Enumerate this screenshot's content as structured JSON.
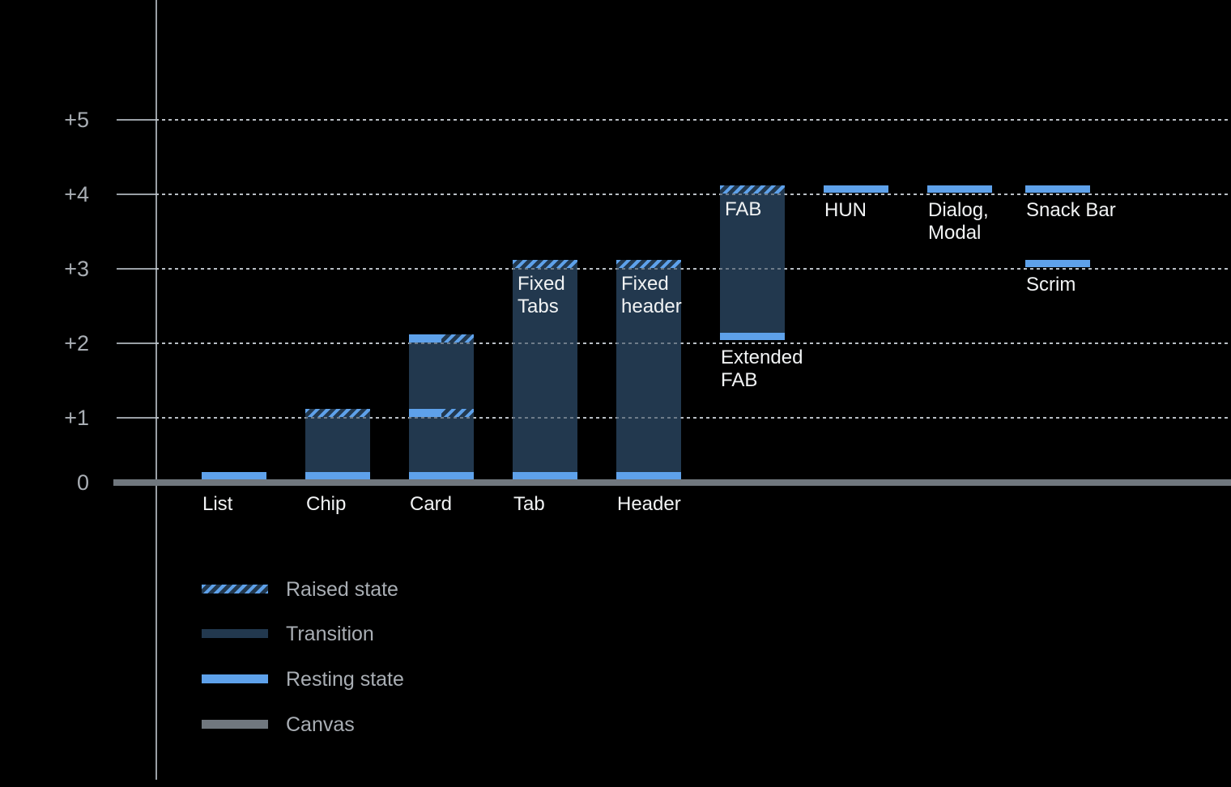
{
  "colors": {
    "background": "#000000",
    "resting_blue": "#5EA1EA",
    "transition_navy": "#22384E",
    "canvas_gray": "#70777E",
    "axis_line": "#9AA0A6",
    "grid_dotted": "#B9BFC5",
    "axis_text": "#A9AEB4",
    "bar_text": "#F1F3F4"
  },
  "chart_data": {
    "type": "bar",
    "title": "",
    "description": "Elevation levels of UI components: stacked columns show transition range between resting state (solid blue band) and raised state (hatched band) above a canvas baseline.",
    "y_axis": {
      "tick_labels": [
        "+5",
        "+4",
        "+3",
        "+2",
        "+1",
        "0"
      ],
      "levels": [
        5,
        4,
        3,
        2,
        1,
        0
      ],
      "ylim": [
        0,
        5
      ],
      "grid": "dotted-horizontal"
    },
    "legend_position": "bottom-left",
    "legend": [
      {
        "key": "raised",
        "label": "Raised state",
        "swatch": "hatch"
      },
      {
        "key": "transition",
        "label": "Transition",
        "swatch": "navy"
      },
      {
        "key": "resting",
        "label": "Resting state",
        "swatch": "blue"
      },
      {
        "key": "canvas",
        "label": "Canvas",
        "swatch": "gray"
      }
    ],
    "items": [
      {
        "key": "list",
        "slot": 0,
        "axis_label": "List",
        "band": {
          "level": 0,
          "style": "resting"
        },
        "resting_level": 0
      },
      {
        "key": "chip",
        "slot": 1,
        "axis_label": "Chip",
        "column": {
          "from": 0,
          "to": 1
        },
        "top_band": "hatch",
        "bottom_band": "resting",
        "resting_level": 0,
        "raised_level": 1
      },
      {
        "key": "card",
        "slot": 2,
        "axis_label": "Card",
        "column": {
          "from": 0,
          "to": 2
        },
        "top_band": "split",
        "mid_bands": [
          {
            "level": 1,
            "style": "split"
          }
        ],
        "bottom_band": "resting",
        "resting_level": 1,
        "raised_level": 2
      },
      {
        "key": "tab",
        "slot": 3,
        "axis_label": "Tab",
        "inner_label": "Fixed\nTabs",
        "column": {
          "from": 0,
          "to": 3
        },
        "top_band": "hatch",
        "bottom_band": "resting",
        "resting_level": 0,
        "raised_level": 3
      },
      {
        "key": "header",
        "slot": 4,
        "axis_label": "Header",
        "inner_label": "Fixed\nheader",
        "column": {
          "from": 0,
          "to": 3
        },
        "top_band": "hatch",
        "bottom_band": "resting",
        "resting_level": 0,
        "raised_level": 3
      },
      {
        "key": "fab",
        "slot": 5,
        "inner_label": "FAB",
        "below_label": "Extended\nFAB",
        "column": {
          "from": 2,
          "to": 4
        },
        "top_band": "hatch",
        "bottom_band": "resting",
        "resting_level": 2,
        "raised_level": 4
      },
      {
        "key": "hun",
        "slot": 6,
        "band_label": "HUN",
        "band": {
          "level": 4,
          "style": "resting"
        },
        "resting_level": 4
      },
      {
        "key": "dialog-modal",
        "slot": 7,
        "band_label": "Dialog,\nModal",
        "band": {
          "level": 4,
          "style": "resting"
        },
        "resting_level": 4
      },
      {
        "key": "snack-bar",
        "slot": 8,
        "band_label": "Snack Bar",
        "band": {
          "level": 4,
          "style": "resting"
        },
        "resting_level": 4
      },
      {
        "key": "scrim",
        "slot": 8,
        "band_label": "Scrim",
        "band": {
          "level": 3,
          "style": "resting"
        },
        "resting_level": 3
      }
    ]
  }
}
